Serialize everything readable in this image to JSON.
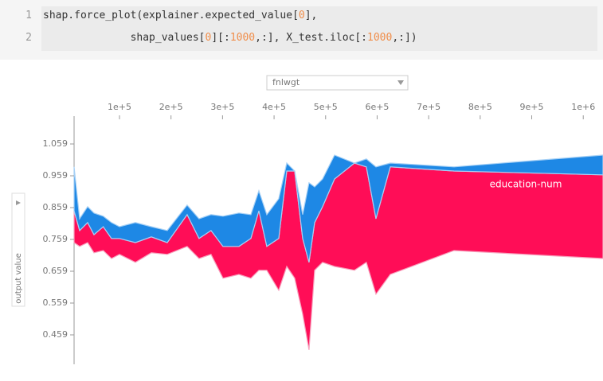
{
  "code": {
    "lines": [
      {
        "number": "1",
        "tokens": [
          "shap.force_plot(explainer.expected_value[",
          "0",
          "],"
        ]
      },
      {
        "number": "2",
        "tokens": [
          "              shap_values[",
          "0",
          "][:",
          "1000",
          ",:], X_test.iloc[:",
          "1000",
          ",:])"
        ]
      }
    ]
  },
  "chart_data": {
    "type": "area",
    "dropdown": "fnlwgt",
    "ylabel": "output value",
    "annotation": "education-num",
    "xlim": [
      11900,
      1038300
    ],
    "ylim": [
      0.3665,
      1.1365
    ],
    "xticks": [
      {
        "value": 100000,
        "label": "1e+5"
      },
      {
        "value": 200000,
        "label": "2e+5"
      },
      {
        "value": 300000,
        "label": "3e+5"
      },
      {
        "value": 400000,
        "label": "4e+5"
      },
      {
        "value": 500000,
        "label": "5e+5"
      },
      {
        "value": 600000,
        "label": "6e+5"
      },
      {
        "value": 700000,
        "label": "7e+5"
      },
      {
        "value": 800000,
        "label": "8e+5"
      },
      {
        "value": 900000,
        "label": "9e+5"
      },
      {
        "value": 1000000,
        "label": "1e+6"
      }
    ],
    "yticks": [
      1.059,
      0.959,
      0.859,
      0.759,
      0.659,
      0.559,
      0.459
    ],
    "x": [
      11900,
      22700,
      38200,
      50500,
      68500,
      84500,
      100000,
      130900,
      161800,
      192700,
      231300,
      254400,
      277600,
      300900,
      331800,
      355000,
      370500,
      385900,
      409100,
      424600,
      440000,
      455500,
      467800,
      478700,
      494100,
      517300,
      556000,
      579100,
      597700,
      625500,
      749200,
      1038300
    ],
    "lower": [
      0.749,
      0.737,
      0.749,
      0.717,
      0.724,
      0.699,
      0.712,
      0.687,
      0.717,
      0.712,
      0.737,
      0.699,
      0.712,
      0.637,
      0.649,
      0.637,
      0.662,
      0.662,
      0.599,
      0.674,
      0.637,
      0.524,
      0.412,
      0.662,
      0.687,
      0.674,
      0.662,
      0.687,
      0.587,
      0.649,
      0.724,
      0.699
    ],
    "series": [
      {
        "color": "#ff0d57",
        "values": [
          0.849,
          0.787,
          0.812,
          0.774,
          0.799,
          0.762,
          0.762,
          0.749,
          0.767,
          0.749,
          0.837,
          0.762,
          0.787,
          0.737,
          0.737,
          0.762,
          0.849,
          0.737,
          0.762,
          0.974,
          0.974,
          0.762,
          0.687,
          0.812,
          0.862,
          0.949,
          0.999,
          0.987,
          0.824,
          0.987,
          0.974,
          0.962
        ]
      },
      {
        "color": "#1e88e5",
        "values": [
          0.987,
          0.824,
          0.862,
          0.842,
          0.832,
          0.812,
          0.799,
          0.812,
          0.799,
          0.787,
          0.867,
          0.824,
          0.837,
          0.832,
          0.842,
          0.837,
          0.912,
          0.837,
          0.887,
          0.999,
          0.974,
          0.837,
          0.937,
          0.924,
          0.949,
          1.024,
          0.999,
          1.012,
          0.987,
          0.999,
          0.987,
          1.024
        ]
      }
    ]
  }
}
